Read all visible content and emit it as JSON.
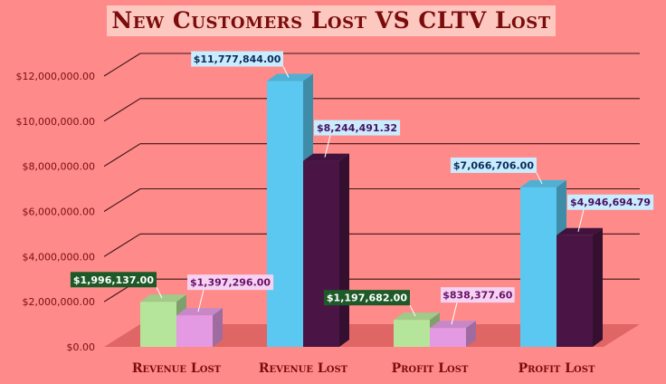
{
  "chart_data": {
    "type": "bar",
    "title": "New Customers Lost VS CLTV Lost",
    "categories": [
      "Revenue Lost",
      "Revenue Lost",
      "Profit Lost",
      "Profit Lost"
    ],
    "series": [
      {
        "values": [
          1996137.0,
          11777844.0,
          1197682.0,
          7066706.0
        ]
      },
      {
        "values": [
          1397296.0,
          8244491.32,
          838377.6,
          4946694.79
        ]
      }
    ],
    "data_labels": [
      [
        "$1,996,137.00",
        "$11,777,844.00",
        "$1,197,682.00",
        "$7,066,706.00"
      ],
      [
        "$1,397,296.00",
        "$8,244,491.32",
        "$838,377.60",
        "$4,946,694.79"
      ]
    ],
    "y_ticks": [
      0,
      2000000,
      4000000,
      6000000,
      8000000,
      10000000,
      12000000
    ],
    "y_tick_labels": [
      "$0.00",
      "$2,000,000.00",
      "$4,000,000.00",
      "$6,000,000.00",
      "$8,000,000.00",
      "$10,000,000.00",
      "$12,000,000.00"
    ],
    "ylim": [
      0,
      14000000
    ],
    "grid": true,
    "legend": "none",
    "style_3d": true,
    "colors": {
      "background": "#ff8a8a",
      "title_bg": "#fcc8c0",
      "title_text": "#7a0c0c",
      "category_label": "#7a0c0c",
      "gridline": "#3a1515",
      "floor": "#e06565",
      "bar_fill": [
        [
          "#b5e59a",
          "#5ac8f0",
          "#b5e59a",
          "#5ac8f0"
        ],
        [
          "#e39ae3",
          "#4a1545",
          "#e39ae3",
          "#4a1545"
        ]
      ],
      "label_box": [
        [
          "#1e5a28",
          "#c9ecff",
          "#1e5a28",
          "#c9ecff"
        ],
        [
          "#f6d2f2",
          "#c9ecff",
          "#f6d2f2",
          "#c9ecff"
        ]
      ],
      "label_text": [
        [
          "#ffffff",
          "#0a2c5a",
          "#ffffff",
          "#0a2c5a"
        ],
        [
          "#6a1268",
          "#4a1060",
          "#6a1268",
          "#4a1060"
        ]
      ]
    }
  }
}
